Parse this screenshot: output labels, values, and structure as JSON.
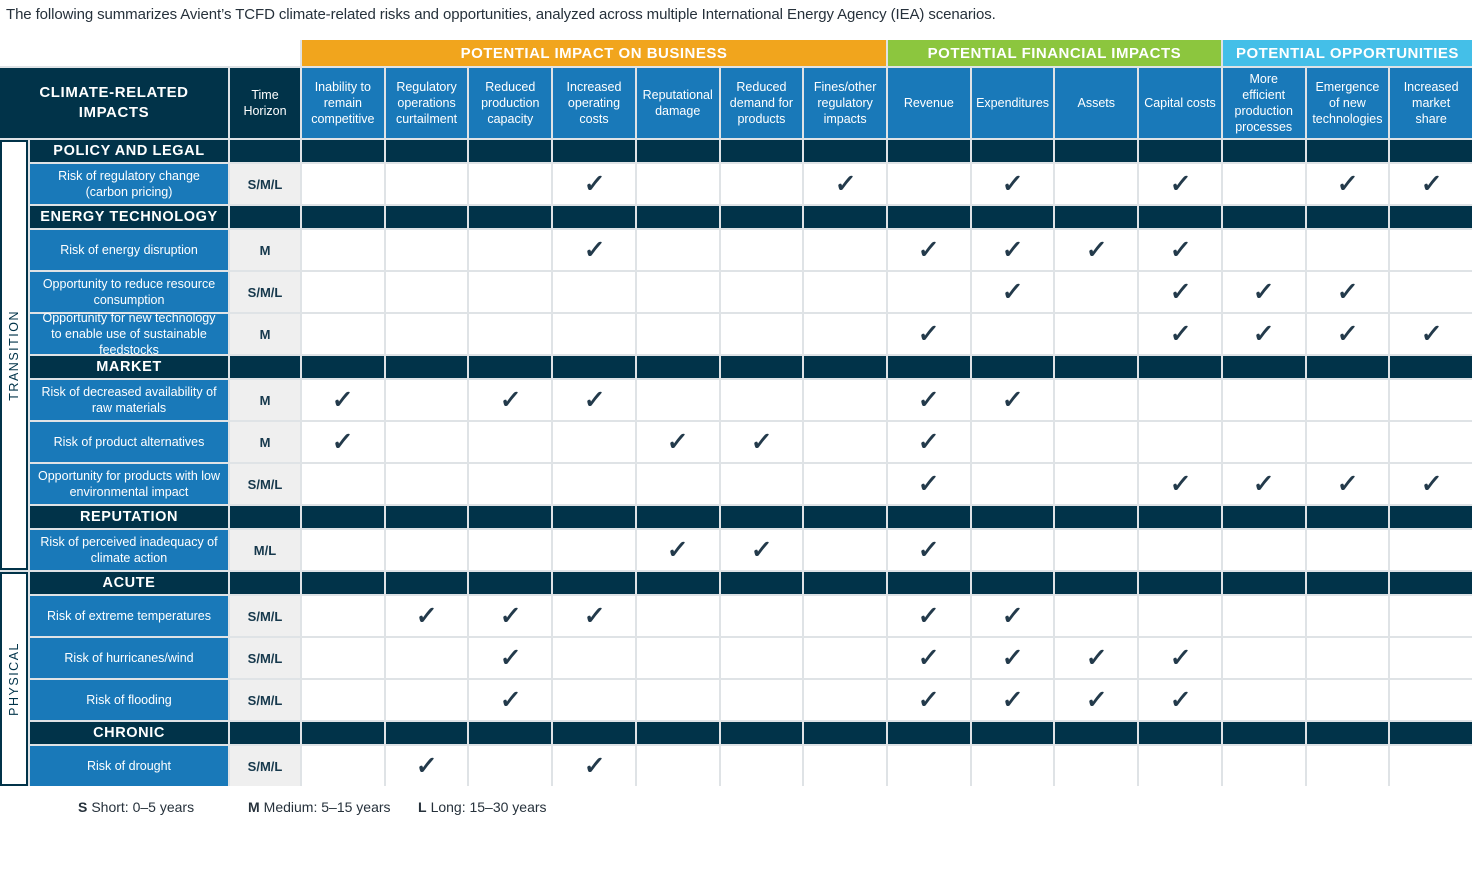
{
  "intro": "The following summarizes Avient’s TCFD climate-related risks and opportunities, analyzed across multiple International Energy Agency (IEA) scenarios.",
  "colors": {
    "navy": "#013349",
    "blue": "#1979B9",
    "orange": "#F1A51D",
    "green": "#8CC63E",
    "cyan": "#44BFE8",
    "timegray": "#EFEFEF",
    "check": "#233A4B"
  },
  "check_glyph": "✓",
  "table": {
    "corner_header": "CLIMATE-RELATED IMPACTS",
    "time_header": "Time Horizon",
    "groups": [
      {
        "label": "POTENTIAL IMPACT ON BUSINESS",
        "color_key": "orange",
        "span": 7
      },
      {
        "label": "POTENTIAL FINANCIAL IMPACTS",
        "color_key": "green",
        "span": 4
      },
      {
        "label": "POTENTIAL OPPORTUNITIES",
        "color_key": "cyan",
        "span": 3
      }
    ],
    "columns": [
      "Inability to remain competitive",
      "Regulatory operations curtailment",
      "Reduced production capacity",
      "Increased operating costs",
      "Reputational damage",
      "Reduced demand for products",
      "Fines/other regulatory impacts",
      "Revenue",
      "Expenditures",
      "Assets",
      "Capital costs",
      "More efficient production processes",
      "Emergence of new technologies",
      "Increased market share"
    ],
    "brackets": [
      {
        "label": "TRANSITION",
        "sections": [
          0,
          1,
          2,
          3
        ]
      },
      {
        "label": "PHYSICAL",
        "sections": [
          4,
          5
        ]
      }
    ],
    "sections": [
      {
        "title": "POLICY AND LEGAL",
        "rows": [
          {
            "label": "Risk of regulatory change (carbon pricing)",
            "time": "S/M/L",
            "checks": [
              4,
              7,
              9,
              11,
              13,
              14
            ]
          }
        ]
      },
      {
        "title": "ENERGY TECHNOLOGY",
        "rows": [
          {
            "label": "Risk of energy disruption",
            "time": "M",
            "checks": [
              4,
              8,
              9,
              10,
              11
            ]
          },
          {
            "label": "Opportunity to reduce resource consumption",
            "time": "S/M/L",
            "checks": [
              9,
              11,
              12,
              13
            ]
          },
          {
            "label": "Opportunity for new technology to enable use of sustainable feedstocks",
            "time": "M",
            "checks": [
              8,
              11,
              12,
              13,
              14
            ]
          }
        ]
      },
      {
        "title": "MARKET",
        "rows": [
          {
            "label": "Risk of decreased availability of raw materials",
            "time": "M",
            "checks": [
              1,
              3,
              4,
              8,
              9
            ]
          },
          {
            "label": "Risk of product alternatives",
            "time": "M",
            "checks": [
              1,
              5,
              6,
              8
            ]
          },
          {
            "label": "Opportunity for products with low environmental impact",
            "time": "S/M/L",
            "checks": [
              8,
              11,
              12,
              13,
              14
            ]
          }
        ]
      },
      {
        "title": "REPUTATION",
        "rows": [
          {
            "label": "Risk of perceived inadequacy of climate action",
            "time": "M/L",
            "checks": [
              5,
              6,
              8
            ]
          }
        ]
      },
      {
        "title": "ACUTE",
        "rows": [
          {
            "label": "Risk of extreme temperatures",
            "time": "S/M/L",
            "checks": [
              2,
              3,
              4,
              8,
              9
            ]
          },
          {
            "label": "Risk of hurricanes/wind",
            "time": "S/M/L",
            "checks": [
              3,
              8,
              9,
              10,
              11
            ]
          },
          {
            "label": "Risk of flooding",
            "time": "S/M/L",
            "checks": [
              3,
              8,
              9,
              10,
              11
            ]
          }
        ]
      },
      {
        "title": "CHRONIC",
        "rows": [
          {
            "label": "Risk of drought",
            "time": "S/M/L",
            "checks": [
              2,
              4
            ]
          }
        ]
      }
    ]
  },
  "legend": [
    {
      "key": "S",
      "label": "Short: 0–5 years"
    },
    {
      "key": "M",
      "label": "Medium: 5–15 years"
    },
    {
      "key": "L",
      "label": "Long: 15–30 years"
    }
  ]
}
